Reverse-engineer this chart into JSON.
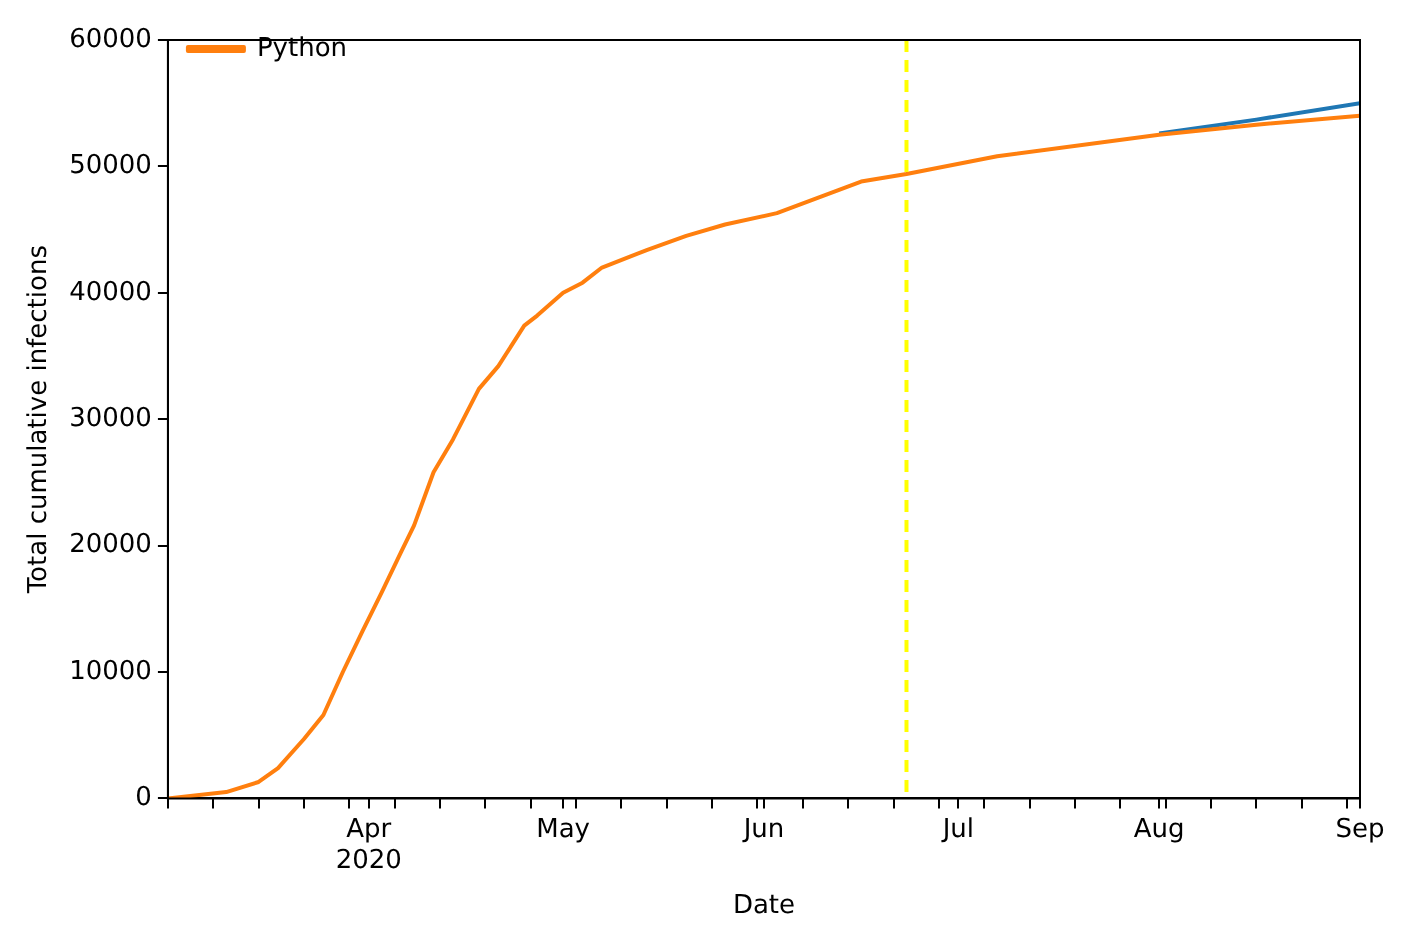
{
  "chart_data": {
    "type": "line",
    "xlabel": "Date",
    "ylabel": "Total cumulative infections",
    "x": [
      "2020-03-01",
      "2020-03-10",
      "2020-03-15",
      "2020-03-18",
      "2020-03-22",
      "2020-03-25",
      "2020-03-28",
      "2020-03-31",
      "2020-04-03",
      "2020-04-06",
      "2020-04-08",
      "2020-04-11",
      "2020-04-14",
      "2020-04-18",
      "2020-04-21",
      "2020-04-25",
      "2020-04-27",
      "2020-05-01",
      "2020-05-04",
      "2020-05-07",
      "2020-05-14",
      "2020-05-20",
      "2020-05-26",
      "2020-06-03",
      "2020-06-16",
      "2020-06-23",
      "2020-07-07",
      "2020-08-01",
      "2020-08-16",
      "2020-09-01"
    ],
    "series": [
      {
        "color": "#1f77b4",
        "values": [
          null,
          null,
          null,
          null,
          null,
          null,
          null,
          null,
          null,
          null,
          null,
          null,
          null,
          null,
          null,
          null,
          null,
          null,
          null,
          null,
          null,
          null,
          null,
          null,
          null,
          null,
          null,
          52600,
          53700,
          55000
        ]
      },
      {
        "name": "Python",
        "color": "#ff7f0e",
        "values": [
          0,
          500,
          1300,
          2400,
          4700,
          6600,
          10000,
          13200,
          16300,
          19500,
          21600,
          25800,
          28400,
          32400,
          34200,
          37400,
          38200,
          40000,
          40800,
          42000,
          43400,
          44500,
          45400,
          46300,
          48800,
          49400,
          50800,
          52500,
          53300,
          54000
        ]
      }
    ],
    "xlim": [
      "2020-03-01",
      "2020-09-01"
    ],
    "xticks": [
      {
        "value": "2020-03-01",
        "label": null
      },
      {
        "value": "2020-03-08",
        "label": null
      },
      {
        "value": "2020-03-15",
        "label": null
      },
      {
        "value": "2020-03-22",
        "label": null
      },
      {
        "value": "2020-03-29",
        "label": null
      },
      {
        "value": "2020-04-01",
        "label": "Apr\n2020"
      },
      {
        "value": "2020-04-05",
        "label": null
      },
      {
        "value": "2020-04-12",
        "label": null
      },
      {
        "value": "2020-04-19",
        "label": null
      },
      {
        "value": "2020-04-26",
        "label": null
      },
      {
        "value": "2020-05-01",
        "label": "May"
      },
      {
        "value": "2020-05-03",
        "label": null
      },
      {
        "value": "2020-05-10",
        "label": null
      },
      {
        "value": "2020-05-17",
        "label": null
      },
      {
        "value": "2020-05-24",
        "label": null
      },
      {
        "value": "2020-05-31",
        "label": null
      },
      {
        "value": "2020-06-01",
        "label": "Jun"
      },
      {
        "value": "2020-06-07",
        "label": null
      },
      {
        "value": "2020-06-14",
        "label": null
      },
      {
        "value": "2020-06-21",
        "label": null
      },
      {
        "value": "2020-06-28",
        "label": null
      },
      {
        "value": "2020-07-01",
        "label": "Jul"
      },
      {
        "value": "2020-07-05",
        "label": null
      },
      {
        "value": "2020-07-12",
        "label": null
      },
      {
        "value": "2020-07-19",
        "label": null
      },
      {
        "value": "2020-07-26",
        "label": null
      },
      {
        "value": "2020-08-01",
        "label": "Aug"
      },
      {
        "value": "2020-08-02",
        "label": null
      },
      {
        "value": "2020-08-09",
        "label": null
      },
      {
        "value": "2020-08-16",
        "label": null
      },
      {
        "value": "2020-08-23",
        "label": null
      },
      {
        "value": "2020-08-30",
        "label": null
      },
      {
        "value": "2020-09-01",
        "label": "Sep"
      }
    ],
    "ylim": [
      0,
      60000
    ],
    "yticks": [
      0,
      10000,
      20000,
      30000,
      40000,
      50000,
      60000
    ],
    "ref_lines": [
      {
        "axis": "x",
        "value": "2020-06-23",
        "color": "#ffff00",
        "line_style": "dashed"
      }
    ],
    "legend": "top left",
    "grid": false,
    "marker": "none",
    "line_style": "solid"
  }
}
